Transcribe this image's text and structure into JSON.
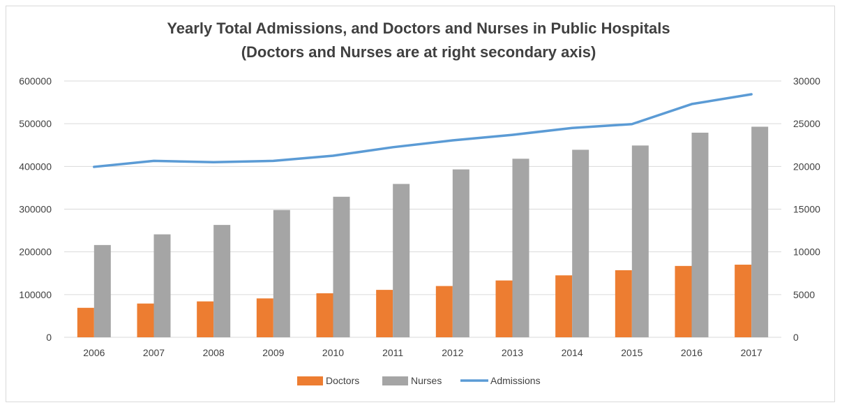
{
  "chart_data": {
    "type": "bar",
    "title": "Yearly Total Admissions, and Doctors and Nurses in Public Hospitals",
    "subtitle": "(Doctors and Nurses are at right secondary axis)",
    "categories": [
      "2006",
      "2007",
      "2008",
      "2009",
      "2010",
      "2011",
      "2012",
      "2013",
      "2014",
      "2015",
      "2016",
      "2017"
    ],
    "series": [
      {
        "name": "Doctors",
        "type": "bar",
        "axis": "secondary",
        "color": "#ed7d31",
        "values": [
          3450,
          3950,
          4200,
          4550,
          5150,
          5550,
          6000,
          6650,
          7250,
          7850,
          8350,
          8500
        ]
      },
      {
        "name": "Nurses",
        "type": "bar",
        "axis": "secondary",
        "color": "#a5a5a5",
        "values": [
          10800,
          12050,
          13150,
          14900,
          16450,
          17950,
          19650,
          20900,
          21950,
          22450,
          23950,
          24650
        ]
      },
      {
        "name": "Admissions",
        "type": "line",
        "axis": "primary",
        "color": "#5b9bd5",
        "values": [
          399000,
          413000,
          410000,
          413000,
          425000,
          445000,
          461000,
          474000,
          490000,
          499000,
          546000,
          569000
        ]
      }
    ],
    "y_primary": {
      "ylim": [
        0,
        600000
      ],
      "ticks": [
        "0",
        "100000",
        "200000",
        "300000",
        "400000",
        "500000",
        "600000"
      ]
    },
    "y_secondary": {
      "ylim": [
        0,
        30000
      ],
      "ticks": [
        "0",
        "5000",
        "10000",
        "15000",
        "20000",
        "25000",
        "30000"
      ]
    },
    "grid": true,
    "legend_position": "bottom"
  }
}
